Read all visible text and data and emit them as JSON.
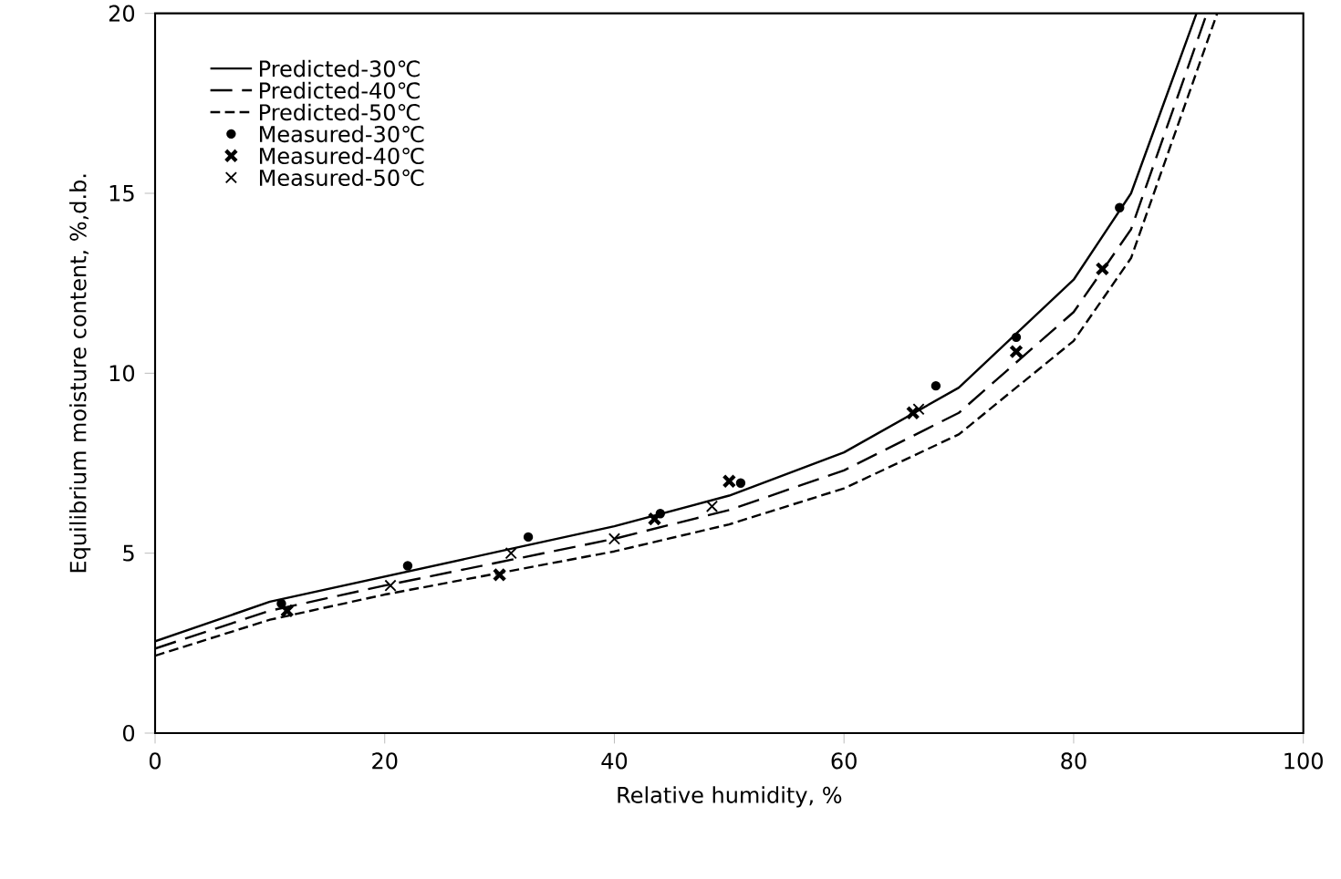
{
  "chart_data": {
    "type": "line",
    "xlabel": "Relative humidity, %",
    "ylabel": "Equilibrium moisture content, %,d.b.",
    "xlim": [
      0,
      100
    ],
    "ylim": [
      0,
      20
    ],
    "xticks": [
      0,
      20,
      40,
      60,
      80,
      100
    ],
    "yticks": [
      0,
      5,
      10,
      15,
      20
    ],
    "grid": false,
    "legend": "top left",
    "series": [
      {
        "name": "Predicted-30℃",
        "color": "#000000",
        "line_style": "solid",
        "marker": "none",
        "x": [
          0,
          10,
          20,
          30,
          40,
          50,
          60,
          70,
          80,
          85,
          90.7
        ],
        "values": [
          2.55,
          3.65,
          4.35,
          5.05,
          5.75,
          6.6,
          7.8,
          9.6,
          12.6,
          15.0,
          20
        ]
      },
      {
        "name": "Predicted-40℃",
        "color": "#000000",
        "line_style": "dashed",
        "marker": "none",
        "x": [
          0,
          10,
          20,
          30,
          40,
          50,
          60,
          70,
          80,
          85,
          91.6
        ],
        "values": [
          2.35,
          3.4,
          4.1,
          4.75,
          5.4,
          6.2,
          7.3,
          8.9,
          11.7,
          14.0,
          20
        ]
      },
      {
        "name": "Predicted-50℃",
        "color": "#000000",
        "line_style": "dotted",
        "marker": "none",
        "x": [
          0,
          10,
          20,
          30,
          40,
          50,
          60,
          70,
          80,
          85,
          92.5
        ],
        "values": [
          2.15,
          3.15,
          3.85,
          4.45,
          5.05,
          5.8,
          6.8,
          8.3,
          10.9,
          13.2,
          20
        ]
      },
      {
        "name": "Measured-30℃",
        "type": "scatter",
        "color": "#000000",
        "marker": "circle",
        "x": [
          11,
          22,
          32.5,
          44,
          51,
          68,
          75,
          84
        ],
        "values": [
          3.6,
          4.65,
          5.45,
          6.1,
          6.95,
          9.65,
          11.0,
          14.6
        ]
      },
      {
        "name": "Measured-40℃",
        "type": "scatter",
        "color": "#000000",
        "marker": "cross",
        "x": [
          11.5,
          30,
          43.5,
          50,
          66,
          75,
          82.5
        ],
        "values": [
          3.4,
          4.4,
          5.95,
          7.0,
          8.9,
          10.6,
          12.9
        ]
      },
      {
        "name": "Measured-50℃",
        "type": "scatter",
        "color": "#000000",
        "marker": "cross",
        "x": [
          20.5,
          31,
          40,
          48.5,
          66.5
        ],
        "values": [
          4.1,
          5.0,
          5.4,
          6.3,
          9.0
        ]
      }
    ]
  }
}
